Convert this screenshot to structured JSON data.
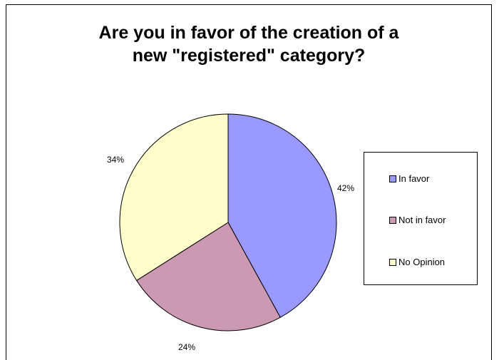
{
  "title_line1": "Are you in favor of the creation of a",
  "title_line2": "new \"registered\" category?",
  "chart_data": {
    "type": "pie",
    "title": "Are you in favor of the creation of a new \"registered\" category?",
    "series": [
      {
        "name": "In favor",
        "value": 42,
        "label": "42%",
        "color": "#9999ff"
      },
      {
        "name": "Not in favor",
        "value": 24,
        "label": "24%",
        "color": "#cc99b3"
      },
      {
        "name": "No Opinion",
        "value": 34,
        "label": "34%",
        "color": "#ffffcc"
      }
    ],
    "legend_position": "right"
  }
}
